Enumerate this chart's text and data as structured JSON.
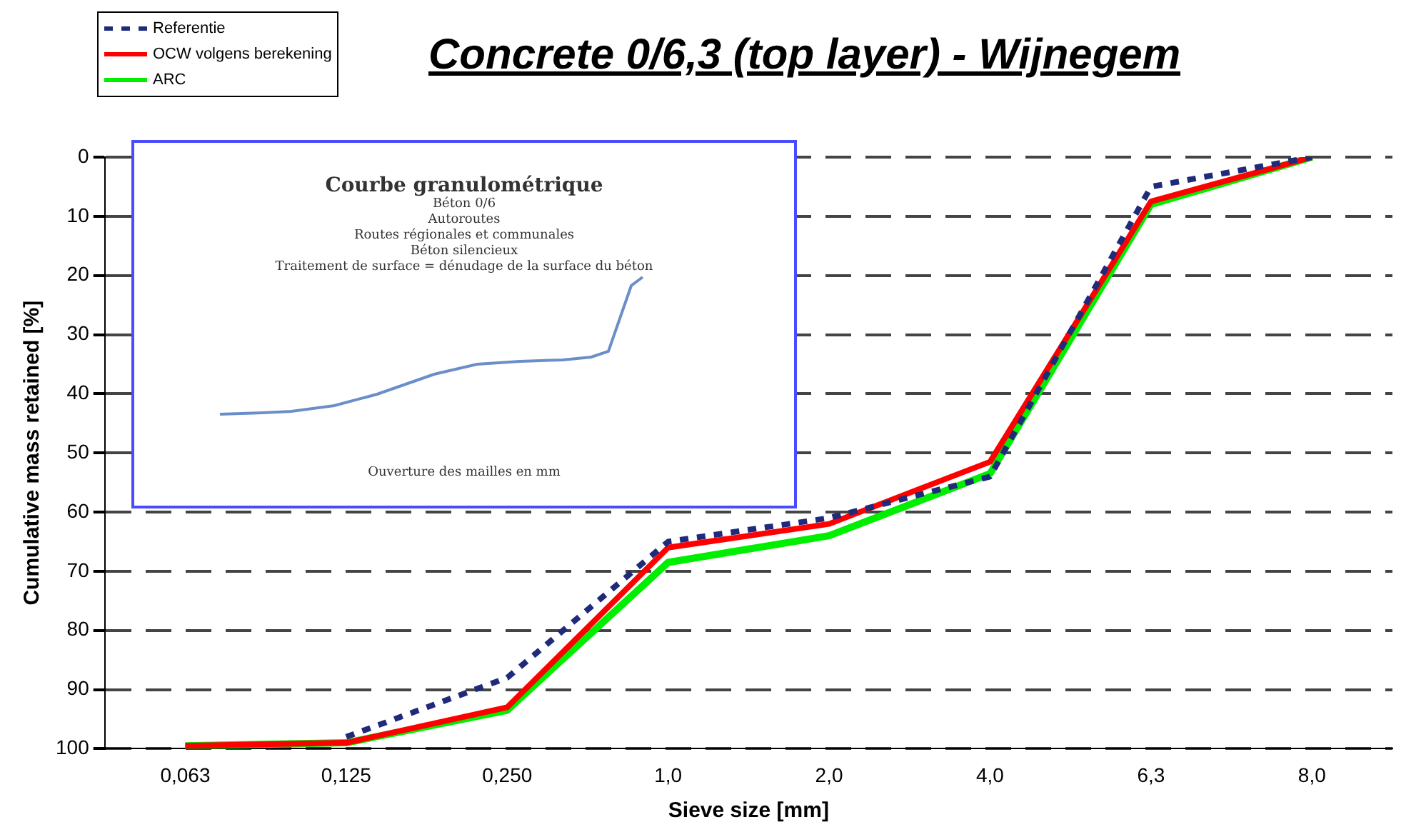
{
  "chart_data": {
    "type": "line",
    "title": "Concrete 0/6,3 (top layer) - Wijnegem",
    "xlabel": "Sieve size [mm]",
    "ylabel": "Cumulative mass retained [%]",
    "categories": [
      "0,063",
      "0,125",
      "0,250",
      "1,0",
      "2,0",
      "4,0",
      "6,3",
      "8,0"
    ],
    "series": [
      {
        "name": "Referentie",
        "color": "#1f2a7a",
        "line_style": "dashed",
        "values": [
          null,
          98,
          88,
          65,
          61,
          54,
          5,
          0
        ]
      },
      {
        "name": "OCW volgens berekening",
        "color": "#ff0000",
        "line_style": "solid",
        "values": [
          99.5,
          99,
          93,
          66,
          62,
          51.5,
          7.5,
          0
        ]
      },
      {
        "name": "ARC",
        "color": "#00ee00",
        "line_style": "solid",
        "values": [
          99.5,
          99,
          93.5,
          68.5,
          64,
          53.5,
          8,
          0
        ]
      }
    ],
    "ylim": [
      100,
      0
    ],
    "yticks": [
      0,
      10,
      20,
      30,
      40,
      50,
      60,
      70,
      80,
      90,
      100
    ],
    "grid": "y",
    "legend": "top left",
    "marker": "none",
    "annotations": [
      "Courbe granulométrique",
      "Béton 0/6",
      "Autoroutes",
      "Routes régionales et communales",
      "Béton silencieux",
      "Traitement de surface = dénudage de la surface du béton",
      "Ouverture des mailles en mm"
    ]
  }
}
